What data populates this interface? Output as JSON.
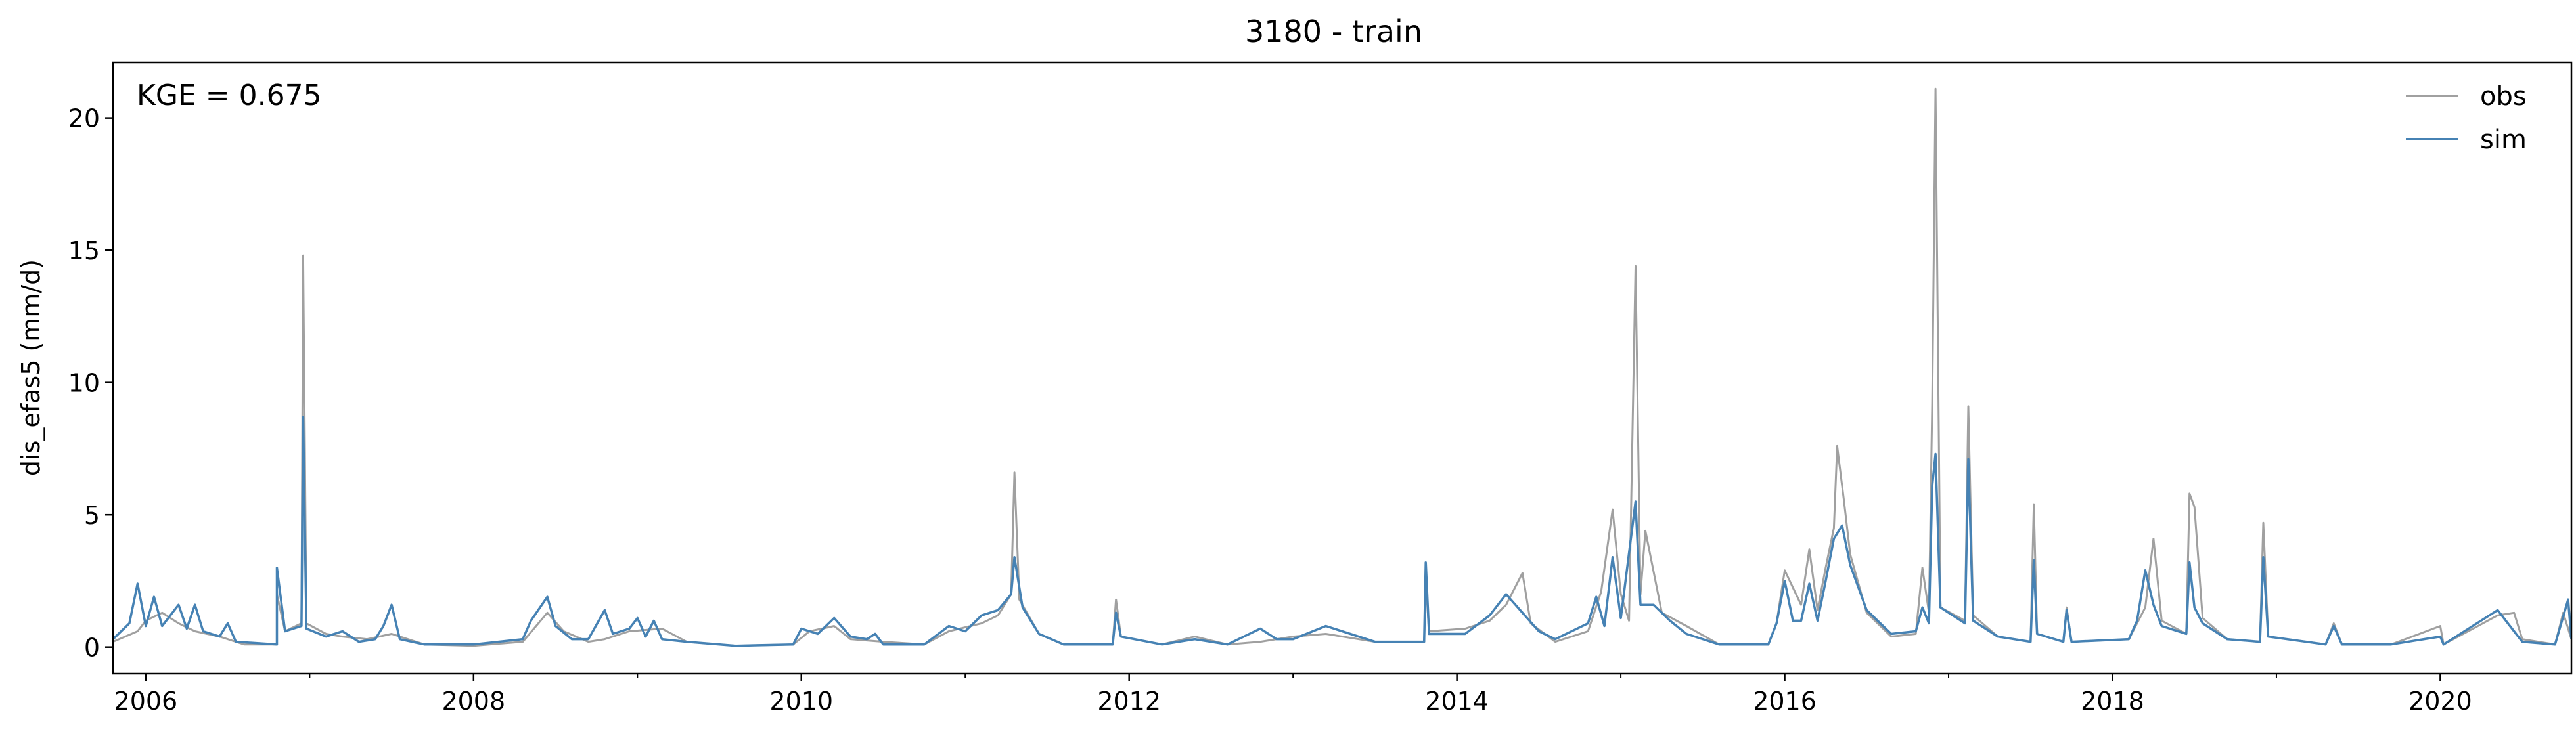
{
  "chart_data": {
    "type": "line",
    "title": "3180 - train",
    "xlabel": "",
    "ylabel": "dis_efas5 (mm/d)",
    "annotation": "KGE = 0.675",
    "xlim": [
      2005.8,
      2020.8
    ],
    "ylim": [
      -1.0,
      22.1
    ],
    "x_ticks": [
      2006,
      2008,
      2010,
      2012,
      2014,
      2016,
      2018,
      2020
    ],
    "y_ticks": [
      0,
      5,
      10,
      15,
      20
    ],
    "legend": {
      "position": "top-right",
      "entries": [
        "obs",
        "sim"
      ]
    },
    "series": [
      {
        "name": "obs",
        "color": "#a0a0a0",
        "points": [
          [
            2005.8,
            0.2
          ],
          [
            2005.95,
            0.6
          ],
          [
            2006.0,
            1.0
          ],
          [
            2006.1,
            1.3
          ],
          [
            2006.2,
            0.9
          ],
          [
            2006.3,
            0.6
          ],
          [
            2006.45,
            0.4
          ],
          [
            2006.6,
            0.1
          ],
          [
            2006.8,
            0.1
          ],
          [
            2006.8,
            2.0
          ],
          [
            2006.85,
            0.6
          ],
          [
            2006.95,
            0.9
          ],
          [
            2006.96,
            14.8
          ],
          [
            2006.98,
            0.9
          ],
          [
            2007.1,
            0.5
          ],
          [
            2007.2,
            0.4
          ],
          [
            2007.35,
            0.3
          ],
          [
            2007.5,
            0.5
          ],
          [
            2007.7,
            0.1
          ],
          [
            2008.0,
            0.05
          ],
          [
            2008.3,
            0.2
          ],
          [
            2008.45,
            1.3
          ],
          [
            2008.55,
            0.6
          ],
          [
            2008.7,
            0.2
          ],
          [
            2008.8,
            0.3
          ],
          [
            2008.95,
            0.6
          ],
          [
            2009.15,
            0.7
          ],
          [
            2009.3,
            0.2
          ],
          [
            2009.6,
            0.05
          ],
          [
            2009.95,
            0.1
          ],
          [
            2010.05,
            0.6
          ],
          [
            2010.2,
            0.8
          ],
          [
            2010.3,
            0.3
          ],
          [
            2010.5,
            0.2
          ],
          [
            2010.75,
            0.1
          ],
          [
            2010.9,
            0.6
          ],
          [
            2011.1,
            0.9
          ],
          [
            2011.2,
            1.2
          ],
          [
            2011.28,
            2.0
          ],
          [
            2011.3,
            6.6
          ],
          [
            2011.33,
            1.8
          ],
          [
            2011.45,
            0.5
          ],
          [
            2011.6,
            0.1
          ],
          [
            2011.9,
            0.1
          ],
          [
            2011.92,
            1.8
          ],
          [
            2011.95,
            0.4
          ],
          [
            2012.2,
            0.1
          ],
          [
            2012.4,
            0.4
          ],
          [
            2012.6,
            0.1
          ],
          [
            2012.8,
            0.2
          ],
          [
            2013.0,
            0.4
          ],
          [
            2013.2,
            0.5
          ],
          [
            2013.5,
            0.2
          ],
          [
            2013.8,
            0.2
          ],
          [
            2013.81,
            2.5
          ],
          [
            2013.83,
            0.6
          ],
          [
            2014.05,
            0.7
          ],
          [
            2014.2,
            1.0
          ],
          [
            2014.3,
            1.6
          ],
          [
            2014.4,
            2.8
          ],
          [
            2014.45,
            0.9
          ],
          [
            2014.6,
            0.2
          ],
          [
            2014.8,
            0.6
          ],
          [
            2014.88,
            2.1
          ],
          [
            2014.95,
            5.2
          ],
          [
            2015.0,
            2.0
          ],
          [
            2015.05,
            1.0
          ],
          [
            2015.09,
            14.4
          ],
          [
            2015.12,
            2.0
          ],
          [
            2015.15,
            4.4
          ],
          [
            2015.25,
            1.3
          ],
          [
            2015.4,
            0.8
          ],
          [
            2015.6,
            0.1
          ],
          [
            2015.9,
            0.1
          ],
          [
            2015.95,
            0.9
          ],
          [
            2016.0,
            2.9
          ],
          [
            2016.1,
            1.6
          ],
          [
            2016.15,
            3.7
          ],
          [
            2016.2,
            1.4
          ],
          [
            2016.25,
            3.0
          ],
          [
            2016.3,
            4.5
          ],
          [
            2016.32,
            7.6
          ],
          [
            2016.36,
            5.6
          ],
          [
            2016.4,
            3.5
          ],
          [
            2016.5,
            1.3
          ],
          [
            2016.65,
            0.4
          ],
          [
            2016.8,
            0.5
          ],
          [
            2016.84,
            3.0
          ],
          [
            2016.88,
            1.3
          ],
          [
            2016.9,
            9.2
          ],
          [
            2016.92,
            21.1
          ],
          [
            2016.95,
            1.5
          ],
          [
            2017.1,
            1.0
          ],
          [
            2017.12,
            9.1
          ],
          [
            2017.15,
            1.2
          ],
          [
            2017.3,
            0.4
          ],
          [
            2017.5,
            0.2
          ],
          [
            2017.52,
            5.4
          ],
          [
            2017.54,
            0.5
          ],
          [
            2017.7,
            0.2
          ],
          [
            2017.72,
            1.5
          ],
          [
            2017.75,
            0.2
          ],
          [
            2018.1,
            0.3
          ],
          [
            2018.2,
            1.5
          ],
          [
            2018.25,
            4.1
          ],
          [
            2018.3,
            1.0
          ],
          [
            2018.45,
            0.5
          ],
          [
            2018.47,
            5.8
          ],
          [
            2018.5,
            5.3
          ],
          [
            2018.55,
            1.1
          ],
          [
            2018.7,
            0.3
          ],
          [
            2018.9,
            0.2
          ],
          [
            2018.92,
            4.7
          ],
          [
            2018.95,
            0.4
          ],
          [
            2019.3,
            0.1
          ],
          [
            2019.35,
            0.9
          ],
          [
            2019.4,
            0.1
          ],
          [
            2019.7,
            0.1
          ],
          [
            2020.0,
            0.8
          ],
          [
            2020.02,
            0.1
          ],
          [
            2020.35,
            1.2
          ],
          [
            2020.45,
            1.3
          ],
          [
            2020.5,
            0.3
          ],
          [
            2020.7,
            0.1
          ],
          [
            2020.75,
            1.3
          ],
          [
            2020.8,
            0.3
          ]
        ]
      },
      {
        "name": "sim",
        "color": "#4682b4",
        "points": [
          [
            2005.8,
            0.3
          ],
          [
            2005.9,
            0.9
          ],
          [
            2005.95,
            2.4
          ],
          [
            2006.0,
            0.8
          ],
          [
            2006.05,
            1.9
          ],
          [
            2006.1,
            0.8
          ],
          [
            2006.2,
            1.6
          ],
          [
            2006.25,
            0.7
          ],
          [
            2006.3,
            1.6
          ],
          [
            2006.35,
            0.6
          ],
          [
            2006.45,
            0.4
          ],
          [
            2006.5,
            0.9
          ],
          [
            2006.55,
            0.2
          ],
          [
            2006.8,
            0.1
          ],
          [
            2006.8,
            3.0
          ],
          [
            2006.85,
            0.6
          ],
          [
            2006.95,
            0.8
          ],
          [
            2006.96,
            8.7
          ],
          [
            2006.98,
            0.7
          ],
          [
            2007.1,
            0.4
          ],
          [
            2007.2,
            0.6
          ],
          [
            2007.3,
            0.2
          ],
          [
            2007.4,
            0.3
          ],
          [
            2007.45,
            0.8
          ],
          [
            2007.5,
            1.6
          ],
          [
            2007.55,
            0.3
          ],
          [
            2007.7,
            0.1
          ],
          [
            2008.0,
            0.1
          ],
          [
            2008.3,
            0.3
          ],
          [
            2008.35,
            1.0
          ],
          [
            2008.45,
            1.9
          ],
          [
            2008.5,
            0.8
          ],
          [
            2008.6,
            0.3
          ],
          [
            2008.7,
            0.3
          ],
          [
            2008.8,
            1.4
          ],
          [
            2008.85,
            0.5
          ],
          [
            2008.95,
            0.7
          ],
          [
            2009.0,
            1.1
          ],
          [
            2009.05,
            0.4
          ],
          [
            2009.1,
            1.0
          ],
          [
            2009.15,
            0.3
          ],
          [
            2009.3,
            0.2
          ],
          [
            2009.6,
            0.05
          ],
          [
            2009.95,
            0.1
          ],
          [
            2010.0,
            0.7
          ],
          [
            2010.1,
            0.5
          ],
          [
            2010.2,
            1.1
          ],
          [
            2010.3,
            0.4
          ],
          [
            2010.4,
            0.3
          ],
          [
            2010.45,
            0.5
          ],
          [
            2010.5,
            0.1
          ],
          [
            2010.75,
            0.1
          ],
          [
            2010.9,
            0.8
          ],
          [
            2011.0,
            0.6
          ],
          [
            2011.1,
            1.2
          ],
          [
            2011.2,
            1.4
          ],
          [
            2011.28,
            2.0
          ],
          [
            2011.3,
            3.4
          ],
          [
            2011.35,
            1.5
          ],
          [
            2011.45,
            0.5
          ],
          [
            2011.6,
            0.1
          ],
          [
            2011.9,
            0.1
          ],
          [
            2011.92,
            1.3
          ],
          [
            2011.95,
            0.4
          ],
          [
            2012.2,
            0.1
          ],
          [
            2012.4,
            0.3
          ],
          [
            2012.6,
            0.1
          ],
          [
            2012.8,
            0.7
          ],
          [
            2012.9,
            0.3
          ],
          [
            2013.0,
            0.3
          ],
          [
            2013.2,
            0.8
          ],
          [
            2013.5,
            0.2
          ],
          [
            2013.8,
            0.2
          ],
          [
            2013.81,
            3.2
          ],
          [
            2013.83,
            0.5
          ],
          [
            2014.05,
            0.5
          ],
          [
            2014.2,
            1.2
          ],
          [
            2014.3,
            2.0
          ],
          [
            2014.4,
            1.3
          ],
          [
            2014.5,
            0.6
          ],
          [
            2014.6,
            0.3
          ],
          [
            2014.8,
            0.9
          ],
          [
            2014.85,
            1.9
          ],
          [
            2014.9,
            0.8
          ],
          [
            2014.95,
            3.4
          ],
          [
            2015.0,
            1.1
          ],
          [
            2015.09,
            5.5
          ],
          [
            2015.12,
            1.6
          ],
          [
            2015.2,
            1.6
          ],
          [
            2015.3,
            1.0
          ],
          [
            2015.4,
            0.5
          ],
          [
            2015.6,
            0.1
          ],
          [
            2015.9,
            0.1
          ],
          [
            2015.95,
            0.9
          ],
          [
            2016.0,
            2.5
          ],
          [
            2016.05,
            1.0
          ],
          [
            2016.1,
            1.0
          ],
          [
            2016.15,
            2.4
          ],
          [
            2016.2,
            1.0
          ],
          [
            2016.25,
            2.5
          ],
          [
            2016.3,
            4.1
          ],
          [
            2016.35,
            4.6
          ],
          [
            2016.4,
            3.1
          ],
          [
            2016.5,
            1.4
          ],
          [
            2016.65,
            0.5
          ],
          [
            2016.8,
            0.6
          ],
          [
            2016.84,
            1.5
          ],
          [
            2016.88,
            0.9
          ],
          [
            2016.9,
            6.1
          ],
          [
            2016.92,
            7.3
          ],
          [
            2016.95,
            1.5
          ],
          [
            2017.0,
            1.3
          ],
          [
            2017.1,
            0.9
          ],
          [
            2017.12,
            7.1
          ],
          [
            2017.15,
            1.0
          ],
          [
            2017.3,
            0.4
          ],
          [
            2017.5,
            0.2
          ],
          [
            2017.52,
            3.3
          ],
          [
            2017.54,
            0.5
          ],
          [
            2017.7,
            0.2
          ],
          [
            2017.72,
            1.4
          ],
          [
            2017.75,
            0.2
          ],
          [
            2018.1,
            0.3
          ],
          [
            2018.15,
            1.0
          ],
          [
            2018.2,
            2.9
          ],
          [
            2018.25,
            1.6
          ],
          [
            2018.3,
            0.8
          ],
          [
            2018.45,
            0.5
          ],
          [
            2018.47,
            3.2
          ],
          [
            2018.5,
            1.5
          ],
          [
            2018.55,
            0.9
          ],
          [
            2018.7,
            0.3
          ],
          [
            2018.9,
            0.2
          ],
          [
            2018.92,
            3.4
          ],
          [
            2018.95,
            0.4
          ],
          [
            2019.3,
            0.1
          ],
          [
            2019.35,
            0.8
          ],
          [
            2019.4,
            0.1
          ],
          [
            2019.7,
            0.1
          ],
          [
            2020.0,
            0.4
          ],
          [
            2020.02,
            0.1
          ],
          [
            2020.35,
            1.4
          ],
          [
            2020.45,
            0.6
          ],
          [
            2020.5,
            0.2
          ],
          [
            2020.7,
            0.1
          ],
          [
            2020.78,
            1.8
          ],
          [
            2020.8,
            0.3
          ]
        ]
      }
    ]
  }
}
